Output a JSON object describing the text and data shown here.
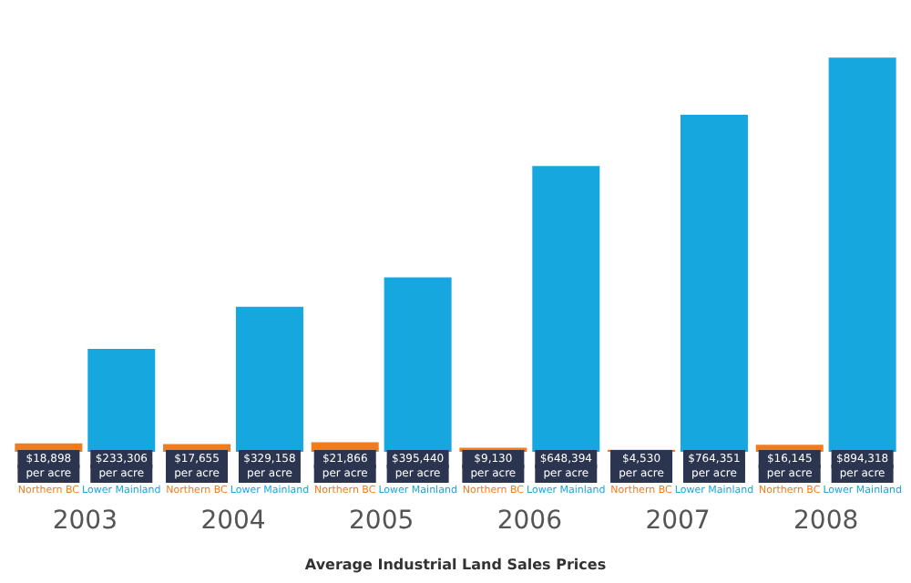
{
  "chart_data": {
    "type": "bar",
    "title": "Average Industrial Land Sales Prices",
    "categories": [
      "2003",
      "2004",
      "2005",
      "2006",
      "2007",
      "2008"
    ],
    "series": [
      {
        "name": "Northern BC",
        "color": "#f07c1e",
        "values": [
          18898,
          17655,
          21866,
          9130,
          4530,
          16145
        ],
        "value_labels": [
          "$18,898 per acre",
          "$17,655 per acre",
          "$21,866 per acre",
          "$9,130 per acre",
          "$4,530 per acre",
          "$16,145 per acre"
        ]
      },
      {
        "name": "Lower Mainland",
        "color": "#16a7de",
        "values": [
          233306,
          329158,
          395440,
          648394,
          764351,
          894318
        ],
        "value_labels": [
          "$233,306 per acre",
          "$329,158 per acre",
          "$395,440 per acre",
          "$648,394 per acre",
          "$764,351 per acre",
          "$894,318 per acre"
        ]
      }
    ],
    "grid": false,
    "legend": false
  }
}
